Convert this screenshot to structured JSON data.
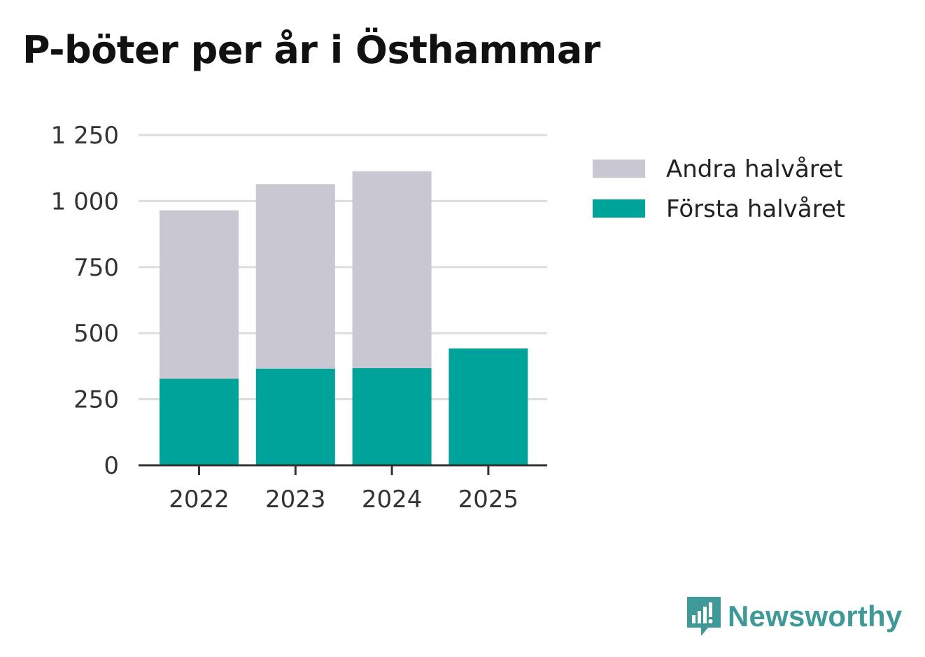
{
  "chart_data": {
    "type": "bar",
    "stacked": true,
    "title": "P-böter per år i Östhammar",
    "xlabel": "",
    "ylabel": "",
    "categories": [
      "2022",
      "2023",
      "2024",
      "2025"
    ],
    "series": [
      {
        "name": "Första halvåret",
        "color": "#00a39a",
        "values": [
          328,
          366,
          368,
          442
        ]
      },
      {
        "name": "Andra halvåret",
        "color": "#c8c7d2",
        "values": [
          637,
          698,
          745,
          0
        ]
      }
    ],
    "ylim": [
      0,
      1250
    ],
    "yticks": [
      0,
      250,
      500,
      750,
      1000,
      1250
    ],
    "ytick_labels": [
      "0",
      "250",
      "500",
      "750",
      "1 000",
      "1 250"
    ],
    "grid": true,
    "legend_position": "right",
    "legend_order": [
      "Andra halvåret",
      "Första halvåret"
    ]
  },
  "brand": {
    "name": "Newsworthy",
    "logo_icon": "speech-bubble-bars-icon",
    "color": "#3f9a97"
  }
}
